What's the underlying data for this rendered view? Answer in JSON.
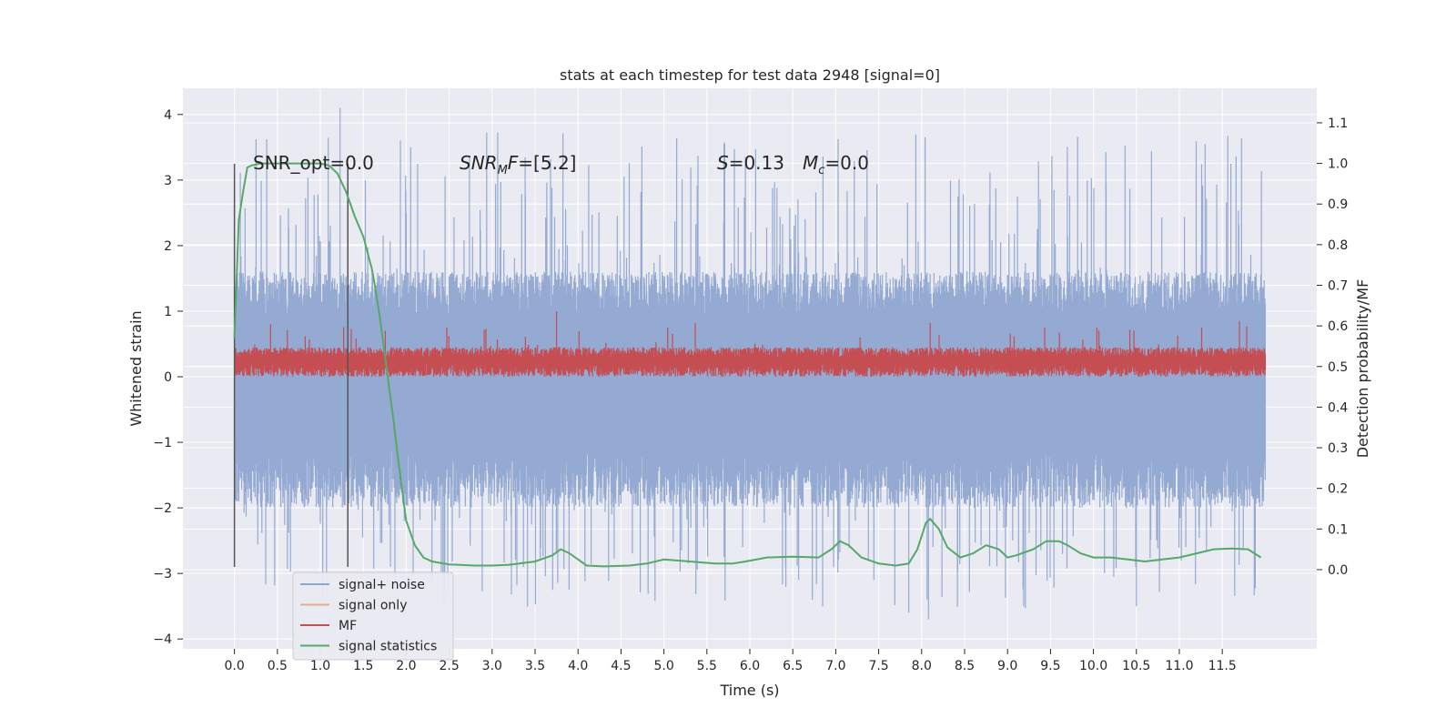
{
  "chart_data": {
    "type": "line",
    "title": "stats at each timestep for test data 2948 [signal=0]",
    "xlabel": "Time (s)",
    "ylabel": "Whitened strain",
    "ylabel_right": "Detection probability/MF",
    "xlim": [
      -0.6,
      12.6
    ],
    "ylim": [
      -4.15,
      4.4
    ],
    "ylim_right": [
      -0.195,
      1.185
    ],
    "x_ticks": [
      "0.0",
      "0.5",
      "1.0",
      "1.5",
      "2.0",
      "2.5",
      "3.0",
      "3.5",
      "4.0",
      "4.5",
      "5.0",
      "5.5",
      "6.0",
      "6.5",
      "7.0",
      "7.5",
      "8.0",
      "8.5",
      "9.0",
      "9.5",
      "10.0",
      "10.5",
      "11.0",
      "11.5"
    ],
    "y_ticks": [
      "4",
      "3",
      "2",
      "1",
      "0",
      "−1",
      "−2",
      "−3",
      "−4"
    ],
    "y_ticks_right": [
      "1.1",
      "1.0",
      "0.9",
      "0.8",
      "0.7",
      "0.6",
      "0.5",
      "0.4",
      "0.3",
      "0.2",
      "0.1",
      "0.0"
    ],
    "grid": true,
    "legend_position": "lower-left",
    "annotations": {
      "snr_opt_prefix": "SNR_opt=",
      "snr_opt_value": "0.0",
      "snr_mf_sym": "SNR",
      "snr_mf_sub": "M",
      "snr_mf_f": "F",
      "snr_mf_value": "=[5.2]",
      "s_sym": "S",
      "s_value": "=0.13",
      "mc_sym": "M",
      "mc_sub": "c",
      "mc_value": "=0.0"
    },
    "vertical_lines": [
      0.0,
      1.32
    ],
    "vertical_lines_yrange": [
      -2.9,
      3.25
    ],
    "noise": {
      "t_start": 0.0,
      "t_end": 12.0,
      "envelope_pos_typ": 1.6,
      "envelope_neg_typ": -2.0,
      "max_spike": 4.1,
      "min_spike": -3.7
    },
    "mf": {
      "t_start": 0.0,
      "t_end": 12.0,
      "mean": 0.2,
      "typ_max": 0.45,
      "max_spike": 1.0
    },
    "series": [
      {
        "name": "signal+ noise",
        "color": "#8fa6d1"
      },
      {
        "name": "signal only",
        "color": "#e6a98a"
      },
      {
        "name": "MF",
        "color": "#c44e52"
      },
      {
        "name": "signal statistics",
        "color": "#55a868",
        "x": [
          0.0,
          0.05,
          0.1,
          0.15,
          0.2,
          0.3,
          0.5,
          0.7,
          1.0,
          1.1,
          1.2,
          1.3,
          1.4,
          1.5,
          1.6,
          1.65,
          1.7,
          1.75,
          1.8,
          1.85,
          1.9,
          1.95,
          2.0,
          2.1,
          2.2,
          2.3,
          2.5,
          2.8,
          3.0,
          3.2,
          3.5,
          3.7,
          3.8,
          3.9,
          4.1,
          4.3,
          4.6,
          4.8,
          5.0,
          5.3,
          5.6,
          5.8,
          5.95,
          6.2,
          6.5,
          6.8,
          6.95,
          7.05,
          7.15,
          7.3,
          7.5,
          7.7,
          7.85,
          7.95,
          8.05,
          8.1,
          8.2,
          8.3,
          8.45,
          8.6,
          8.75,
          8.9,
          9.0,
          9.1,
          9.3,
          9.45,
          9.6,
          9.7,
          9.85,
          10.0,
          10.2,
          10.4,
          10.6,
          10.8,
          11.0,
          11.2,
          11.4,
          11.6,
          11.8,
          11.95
        ],
        "y": [
          0.57,
          0.86,
          0.93,
          0.99,
          0.995,
          1.0,
          1.0,
          1.0,
          1.0,
          0.995,
          0.975,
          0.93,
          0.87,
          0.82,
          0.74,
          0.68,
          0.61,
          0.53,
          0.45,
          0.37,
          0.28,
          0.2,
          0.12,
          0.06,
          0.03,
          0.02,
          0.013,
          0.01,
          0.01,
          0.012,
          0.02,
          0.035,
          0.05,
          0.04,
          0.01,
          0.008,
          0.01,
          0.015,
          0.025,
          0.02,
          0.015,
          0.015,
          0.02,
          0.03,
          0.032,
          0.03,
          0.05,
          0.07,
          0.06,
          0.03,
          0.015,
          0.01,
          0.015,
          0.05,
          0.115,
          0.125,
          0.1,
          0.055,
          0.03,
          0.04,
          0.06,
          0.05,
          0.03,
          0.035,
          0.05,
          0.07,
          0.07,
          0.06,
          0.04,
          0.03,
          0.03,
          0.025,
          0.02,
          0.025,
          0.03,
          0.04,
          0.05,
          0.052,
          0.05,
          0.03
        ]
      }
    ]
  }
}
